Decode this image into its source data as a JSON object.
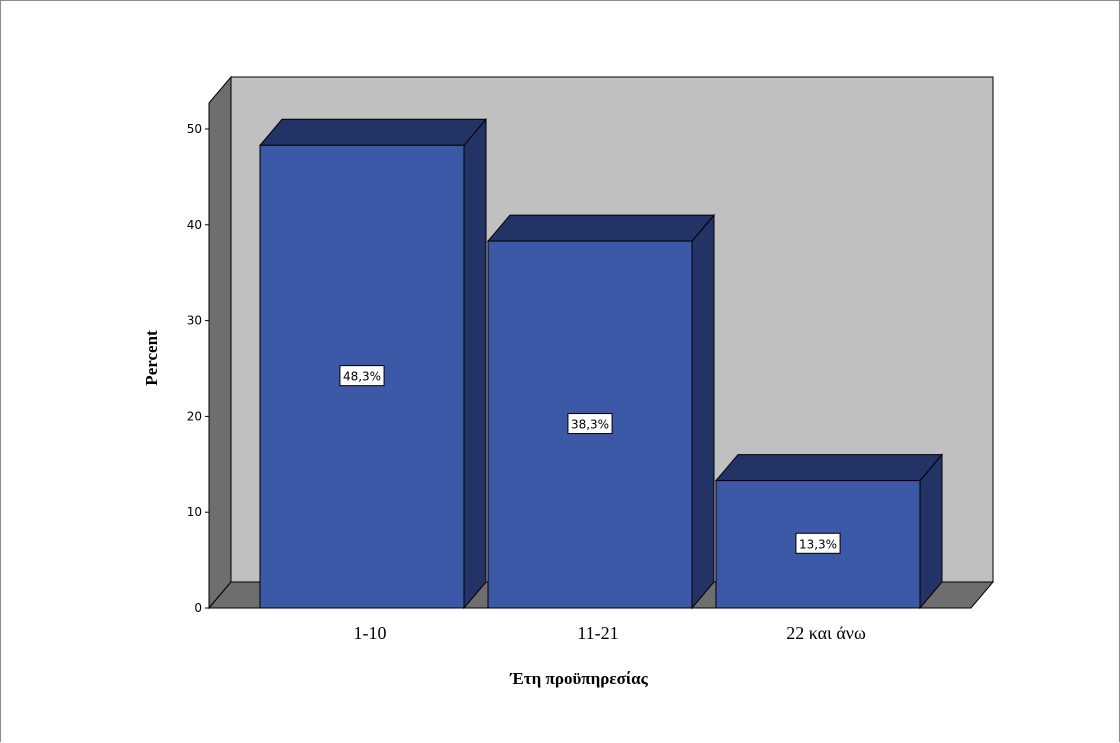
{
  "colors": {
    "bar_front": "#3c59a8",
    "bar_side": "#233366",
    "wall_back": "#c0c0c0",
    "wall_side": "#6e6e6e",
    "floor": "#6e6e6e",
    "frame": "#8c8c8c"
  },
  "chart_data": {
    "type": "bar",
    "categories": [
      "1-10",
      "11-21",
      "22 και άνω"
    ],
    "values": [
      48.3,
      38.3,
      13.3
    ],
    "data_labels": [
      "48,3%",
      "38,3%",
      "13,3%"
    ],
    "title": "",
    "xlabel": "Έτη προϋπηρεσίας",
    "ylabel": "Percent",
    "ylim": [
      0,
      50
    ],
    "yticks": [
      0,
      10,
      20,
      30,
      40,
      50
    ],
    "style": "3d",
    "grid": false,
    "legend": "none"
  }
}
